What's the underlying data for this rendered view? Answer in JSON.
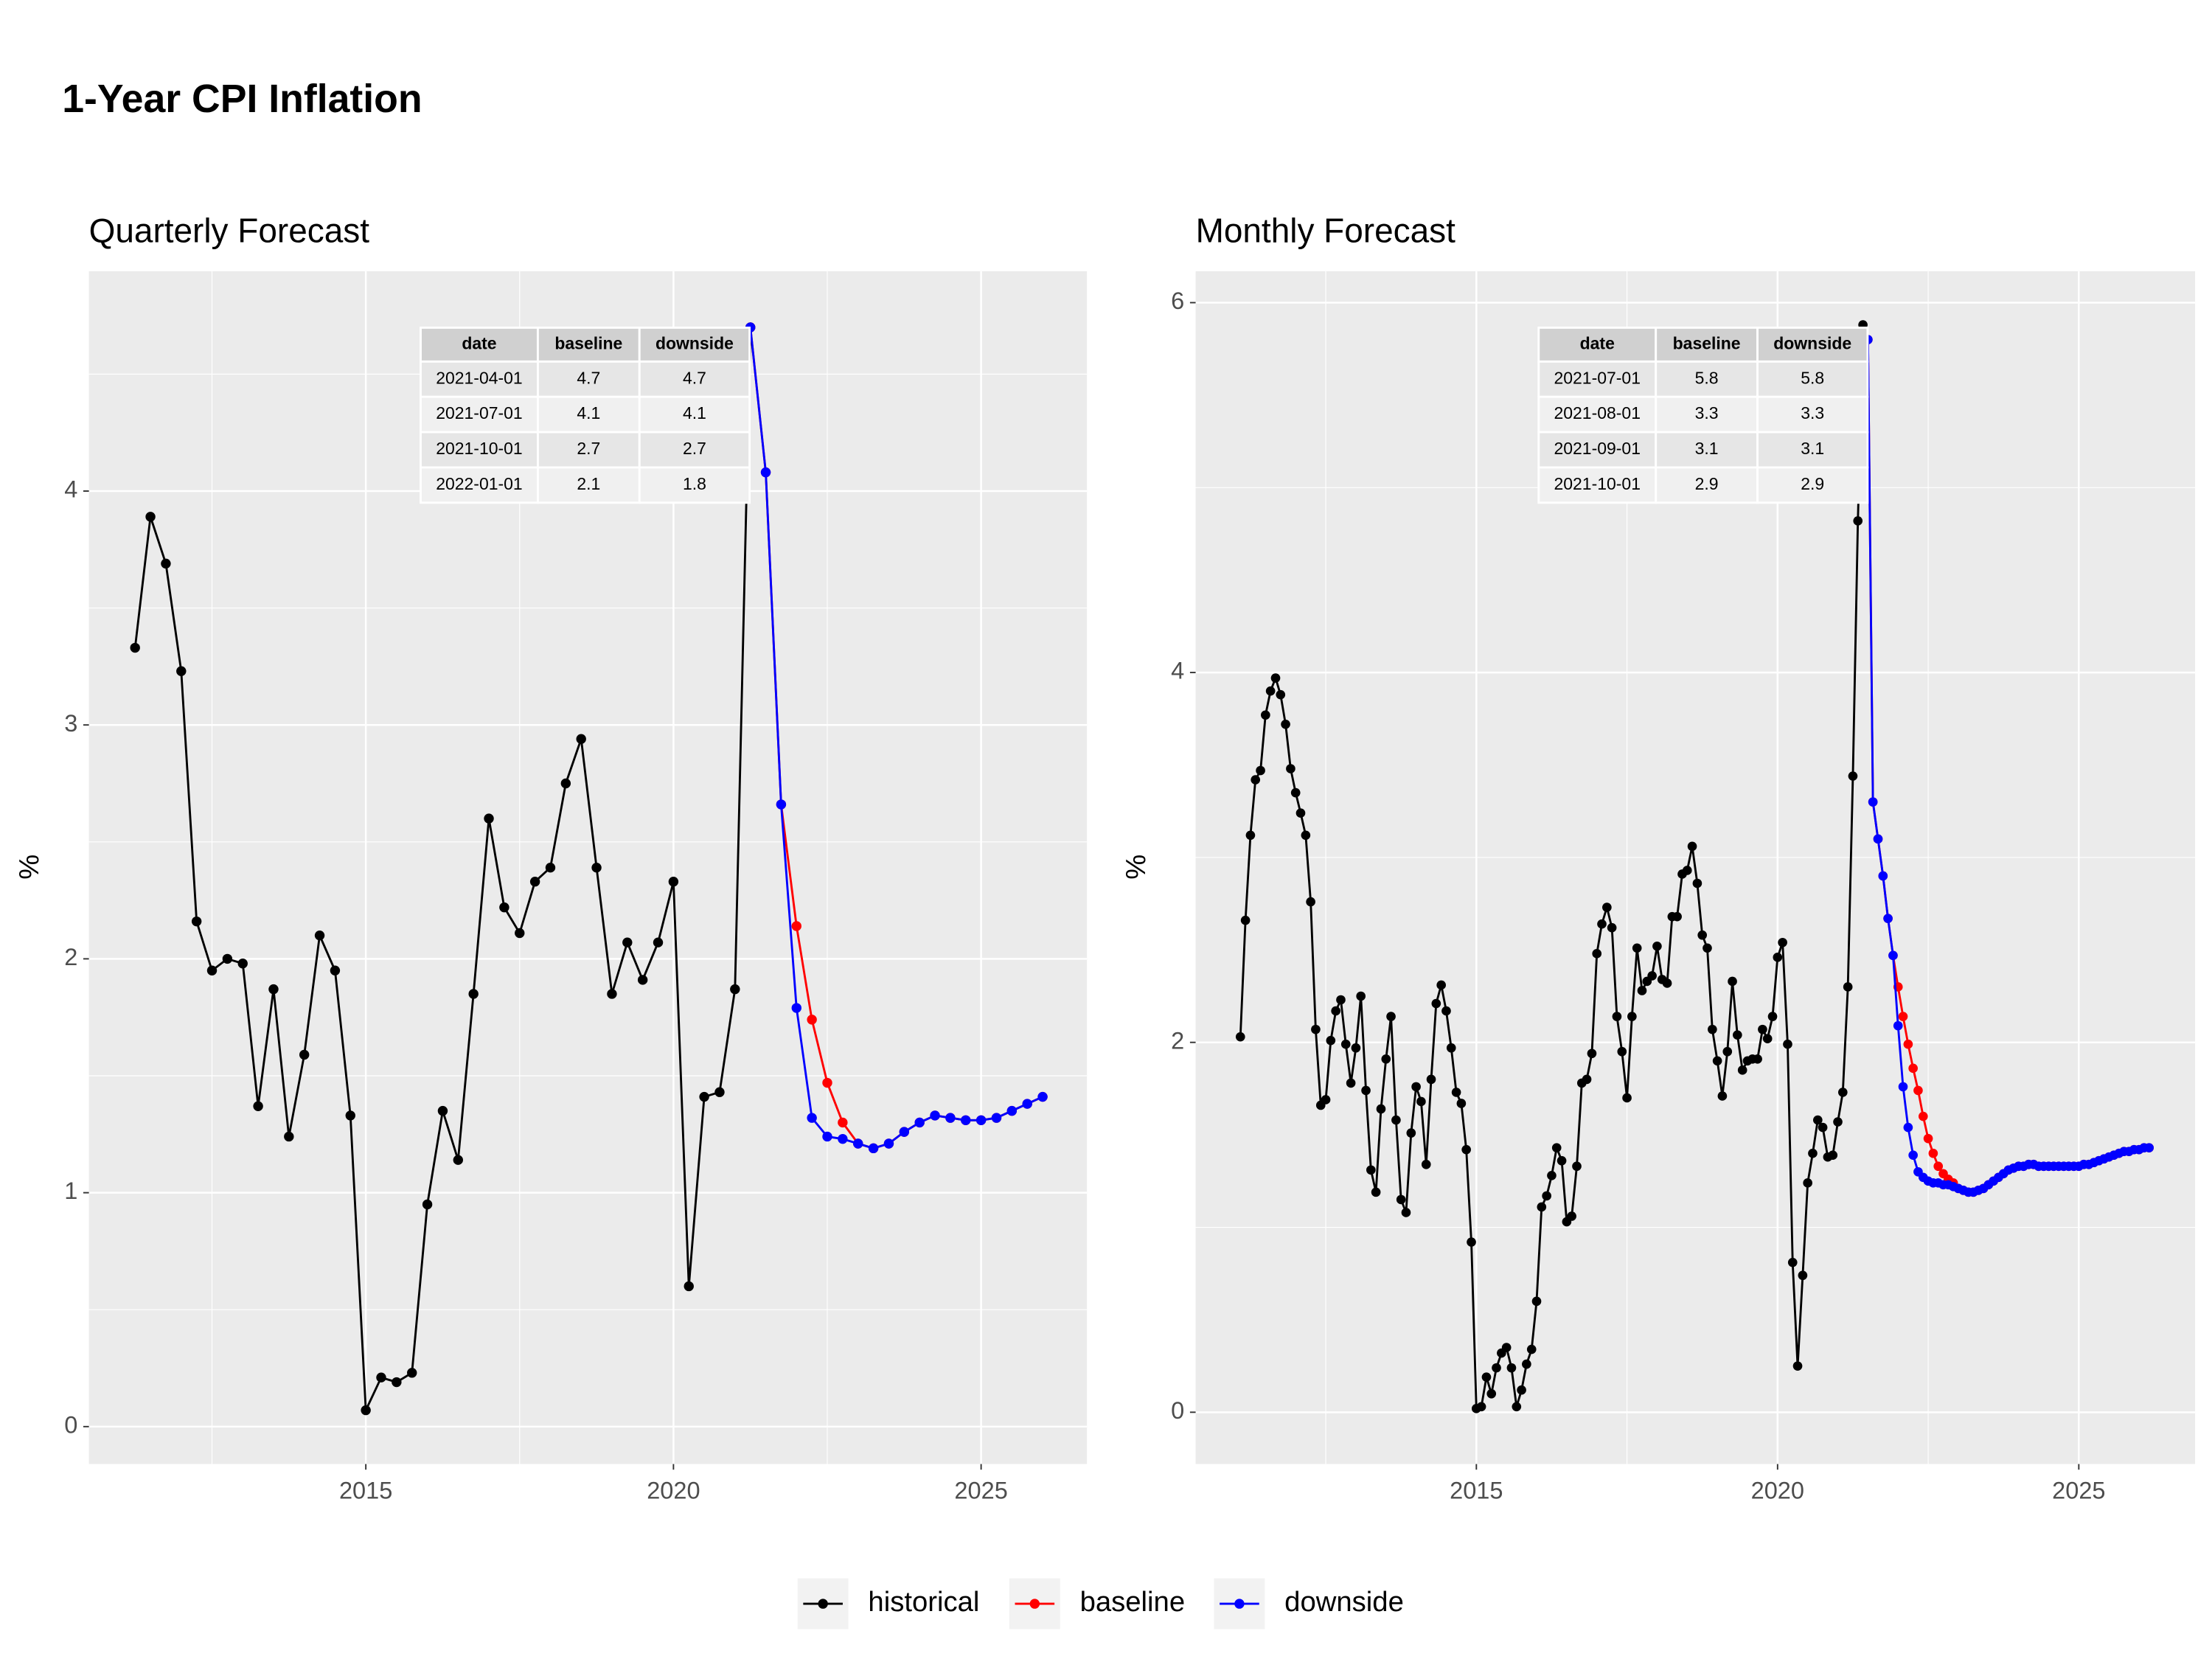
{
  "title": "1-Year CPI Inflation",
  "legend": "bottom",
  "chart_data": [
    {
      "type": "line",
      "title": "Quarterly Forecast",
      "ylabel": "%",
      "xlim": [
        2010.5,
        2026.72
      ],
      "xticks": [
        2015,
        2020,
        2025
      ],
      "ylim": [
        -0.16,
        4.94
      ],
      "yticks": [
        0,
        1,
        2,
        3,
        4
      ],
      "grid": true,
      "series": [
        {
          "name": "historical",
          "color": "#000000",
          "x": [
            2011.25,
            2011.5,
            2011.75,
            2012,
            2012.25,
            2012.5,
            2012.75,
            2013,
            2013.25,
            2013.5,
            2013.75,
            2014,
            2014.25,
            2014.5,
            2014.75,
            2015,
            2015.25,
            2015.5,
            2015.75,
            2016,
            2016.25,
            2016.5,
            2016.75,
            2017,
            2017.25,
            2017.5,
            2017.75,
            2018,
            2018.25,
            2018.5,
            2018.75,
            2019,
            2019.25,
            2019.5,
            2019.75,
            2020,
            2020.25,
            2020.5,
            2020.75,
            2021,
            2021.25
          ],
          "values": [
            3.33,
            3.89,
            3.69,
            3.23,
            2.16,
            1.95,
            2.0,
            1.98,
            1.37,
            1.87,
            1.24,
            1.59,
            2.1,
            1.95,
            1.33,
            0.07,
            0.21,
            0.19,
            0.23,
            0.95,
            1.35,
            1.14,
            1.85,
            2.6,
            2.22,
            2.11,
            2.33,
            2.39,
            2.75,
            2.94,
            2.39,
            1.85,
            2.07,
            1.91,
            2.07,
            2.33,
            0.6,
            1.41,
            1.43,
            1.87,
            4.7
          ]
        },
        {
          "name": "baseline",
          "color": "#ff0000",
          "x": [
            2021.25,
            2021.5,
            2021.75,
            2022,
            2022.25,
            2022.5,
            2022.75,
            2023,
            2023.25,
            2023.5,
            2023.75,
            2024,
            2024.25,
            2024.5,
            2024.75,
            2025,
            2025.25,
            2025.5,
            2025.75,
            2026
          ],
          "values": [
            4.7,
            4.08,
            2.66,
            2.14,
            1.74,
            1.47,
            1.3,
            1.21,
            1.19,
            1.21,
            1.26,
            1.3,
            1.33,
            1.32,
            1.31,
            1.31,
            1.32,
            1.35,
            1.38,
            1.41
          ]
        },
        {
          "name": "downside",
          "color": "#0000ff",
          "x": [
            2021.25,
            2021.5,
            2021.75,
            2022,
            2022.25,
            2022.5,
            2022.75,
            2023,
            2023.25,
            2023.5,
            2023.75,
            2024,
            2024.25,
            2024.5,
            2024.75,
            2025,
            2025.25,
            2025.5,
            2025.75,
            2026
          ],
          "values": [
            4.7,
            4.08,
            2.66,
            1.79,
            1.32,
            1.24,
            1.23,
            1.21,
            1.19,
            1.21,
            1.26,
            1.3,
            1.33,
            1.32,
            1.31,
            1.31,
            1.32,
            1.35,
            1.38,
            1.41
          ]
        }
      ],
      "table": {
        "columns": [
          "date",
          "baseline",
          "downside"
        ],
        "rows": [
          [
            "2021-04-01",
            4.7,
            4.7
          ],
          [
            "2021-07-01",
            4.1,
            4.1
          ],
          [
            "2021-10-01",
            2.7,
            2.7
          ],
          [
            "2022-01-01",
            2.1,
            1.8
          ]
        ]
      }
    },
    {
      "type": "line",
      "title": "Monthly Forecast",
      "ylabel": "%",
      "xlim": [
        2010.34,
        2026.93
      ],
      "xticks": [
        2015,
        2020,
        2025
      ],
      "ylim": [
        -0.28,
        6.17
      ],
      "yticks": [
        0,
        2,
        4,
        6
      ],
      "grid": true,
      "series": [
        {
          "name": "historical",
          "color": "#000000",
          "x": [
            2011.083,
            2011.167,
            2011.25,
            2011.333,
            2011.417,
            2011.5,
            2011.583,
            2011.667,
            2011.75,
            2011.833,
            2011.917,
            2012,
            2012.083,
            2012.167,
            2012.25,
            2012.333,
            2012.417,
            2012.5,
            2012.583,
            2012.667,
            2012.75,
            2012.833,
            2012.917,
            2013,
            2013.083,
            2013.167,
            2013.25,
            2013.333,
            2013.417,
            2013.5,
            2013.583,
            2013.667,
            2013.75,
            2013.833,
            2013.917,
            2014,
            2014.083,
            2014.167,
            2014.25,
            2014.333,
            2014.417,
            2014.5,
            2014.583,
            2014.667,
            2014.75,
            2014.833,
            2014.917,
            2015,
            2015.083,
            2015.167,
            2015.25,
            2015.333,
            2015.417,
            2015.5,
            2015.583,
            2015.667,
            2015.75,
            2015.833,
            2015.917,
            2016,
            2016.083,
            2016.167,
            2016.25,
            2016.333,
            2016.417,
            2016.5,
            2016.583,
            2016.667,
            2016.75,
            2016.833,
            2016.917,
            2017,
            2017.083,
            2017.167,
            2017.25,
            2017.333,
            2017.417,
            2017.5,
            2017.583,
            2017.667,
            2017.75,
            2017.833,
            2017.917,
            2018,
            2018.083,
            2018.167,
            2018.25,
            2018.333,
            2018.417,
            2018.5,
            2018.583,
            2018.667,
            2018.75,
            2018.833,
            2018.917,
            2019,
            2019.083,
            2019.167,
            2019.25,
            2019.333,
            2019.417,
            2019.5,
            2019.583,
            2019.667,
            2019.75,
            2019.833,
            2019.917,
            2020,
            2020.083,
            2020.167,
            2020.25,
            2020.333,
            2020.417,
            2020.5,
            2020.583,
            2020.667,
            2020.75,
            2020.833,
            2020.917,
            2021,
            2021.083,
            2021.167,
            2021.25,
            2021.333,
            2021.417
          ],
          "values": [
            2.03,
            2.66,
            3.12,
            3.42,
            3.47,
            3.77,
            3.9,
            3.97,
            3.88,
            3.72,
            3.48,
            3.35,
            3.24,
            3.12,
            2.76,
            2.07,
            1.66,
            1.69,
            2.01,
            2.17,
            2.23,
            1.99,
            1.78,
            1.97,
            2.25,
            1.74,
            1.31,
            1.19,
            1.64,
            1.91,
            2.14,
            1.58,
            1.15,
            1.08,
            1.51,
            1.76,
            1.68,
            1.34,
            1.8,
            2.21,
            2.31,
            2.17,
            1.97,
            1.73,
            1.67,
            1.42,
            0.92,
            0.02,
            0.03,
            0.19,
            0.1,
            0.24,
            0.32,
            0.35,
            0.24,
            0.03,
            0.12,
            0.26,
            0.34,
            0.6,
            1.11,
            1.17,
            1.28,
            1.43,
            1.36,
            1.03,
            1.06,
            1.33,
            1.78,
            1.8,
            1.94,
            2.48,
            2.64,
            2.73,
            2.62,
            2.14,
            1.95,
            1.7,
            2.14,
            2.51,
            2.28,
            2.33,
            2.36,
            2.52,
            2.34,
            2.32,
            2.68,
            2.68,
            2.91,
            2.93,
            3.06,
            2.86,
            2.58,
            2.51,
            2.07,
            1.9,
            1.71,
            1.95,
            2.33,
            2.04,
            1.85,
            1.9,
            1.91,
            1.91,
            2.07,
            2.02,
            2.14,
            2.46,
            2.54,
            1.99,
            0.81,
            0.25,
            0.74,
            1.24,
            1.4,
            1.58,
            1.54,
            1.38,
            1.39,
            1.57,
            1.73,
            2.3,
            3.44,
            4.82,
            5.88
          ]
        },
        {
          "name": "baseline",
          "color": "#ff0000",
          "x": [
            2021.5,
            2021.583,
            2021.667,
            2021.75,
            2021.833,
            2021.917,
            2022,
            2022.083,
            2022.167,
            2022.25,
            2022.333,
            2022.417,
            2022.5,
            2022.583,
            2022.667,
            2022.75,
            2022.833,
            2022.917,
            2023,
            2023.083,
            2023.167,
            2023.25,
            2023.333,
            2023.417,
            2023.5,
            2023.583,
            2023.667,
            2023.75,
            2023.833,
            2023.917,
            2024,
            2024.083,
            2024.167,
            2024.25,
            2024.333,
            2024.417,
            2024.5,
            2024.583,
            2024.667,
            2024.75,
            2024.833,
            2024.917,
            2025,
            2025.083,
            2025.167,
            2025.25,
            2025.333,
            2025.417,
            2025.5,
            2025.583,
            2025.667,
            2025.75,
            2025.833,
            2025.917,
            2026,
            2026.083,
            2026.167
          ],
          "values": [
            5.8,
            3.3,
            3.1,
            2.9,
            2.67,
            2.47,
            2.3,
            2.14,
            1.99,
            1.86,
            1.74,
            1.6,
            1.48,
            1.4,
            1.33,
            1.29,
            1.26,
            1.24,
            1.21,
            1.2,
            1.19,
            1.19,
            1.2,
            1.21,
            1.23,
            1.25,
            1.27,
            1.29,
            1.31,
            1.32,
            1.33,
            1.33,
            1.34,
            1.34,
            1.33,
            1.33,
            1.33,
            1.33,
            1.33,
            1.33,
            1.33,
            1.33,
            1.33,
            1.34,
            1.34,
            1.35,
            1.36,
            1.37,
            1.38,
            1.39,
            1.4,
            1.41,
            1.41,
            1.42,
            1.42,
            1.43,
            1.43
          ]
        },
        {
          "name": "downside",
          "color": "#0000ff",
          "x": [
            2021.5,
            2021.583,
            2021.667,
            2021.75,
            2021.833,
            2021.917,
            2022,
            2022.083,
            2022.167,
            2022.25,
            2022.333,
            2022.417,
            2022.5,
            2022.583,
            2022.667,
            2022.75,
            2022.833,
            2022.917,
            2023,
            2023.083,
            2023.167,
            2023.25,
            2023.333,
            2023.417,
            2023.5,
            2023.583,
            2023.667,
            2023.75,
            2023.833,
            2023.917,
            2024,
            2024.083,
            2024.167,
            2024.25,
            2024.333,
            2024.417,
            2024.5,
            2024.583,
            2024.667,
            2024.75,
            2024.833,
            2024.917,
            2025,
            2025.083,
            2025.167,
            2025.25,
            2025.333,
            2025.417,
            2025.5,
            2025.583,
            2025.667,
            2025.75,
            2025.833,
            2025.917,
            2026,
            2026.083,
            2026.167
          ],
          "values": [
            5.8,
            3.3,
            3.1,
            2.9,
            2.67,
            2.47,
            2.09,
            1.76,
            1.54,
            1.39,
            1.3,
            1.27,
            1.25,
            1.24,
            1.24,
            1.23,
            1.23,
            1.22,
            1.21,
            1.2,
            1.19,
            1.19,
            1.2,
            1.21,
            1.23,
            1.25,
            1.27,
            1.29,
            1.31,
            1.32,
            1.33,
            1.33,
            1.34,
            1.34,
            1.33,
            1.33,
            1.33,
            1.33,
            1.33,
            1.33,
            1.33,
            1.33,
            1.33,
            1.34,
            1.34,
            1.35,
            1.36,
            1.37,
            1.38,
            1.39,
            1.4,
            1.41,
            1.41,
            1.42,
            1.42,
            1.43,
            1.43
          ]
        }
      ],
      "table": {
        "columns": [
          "date",
          "baseline",
          "downside"
        ],
        "rows": [
          [
            "2021-07-01",
            5.8,
            5.8
          ],
          [
            "2021-08-01",
            3.3,
            3.3
          ],
          [
            "2021-09-01",
            3.1,
            3.1
          ],
          [
            "2021-10-01",
            2.9,
            2.9
          ]
        ]
      }
    }
  ]
}
